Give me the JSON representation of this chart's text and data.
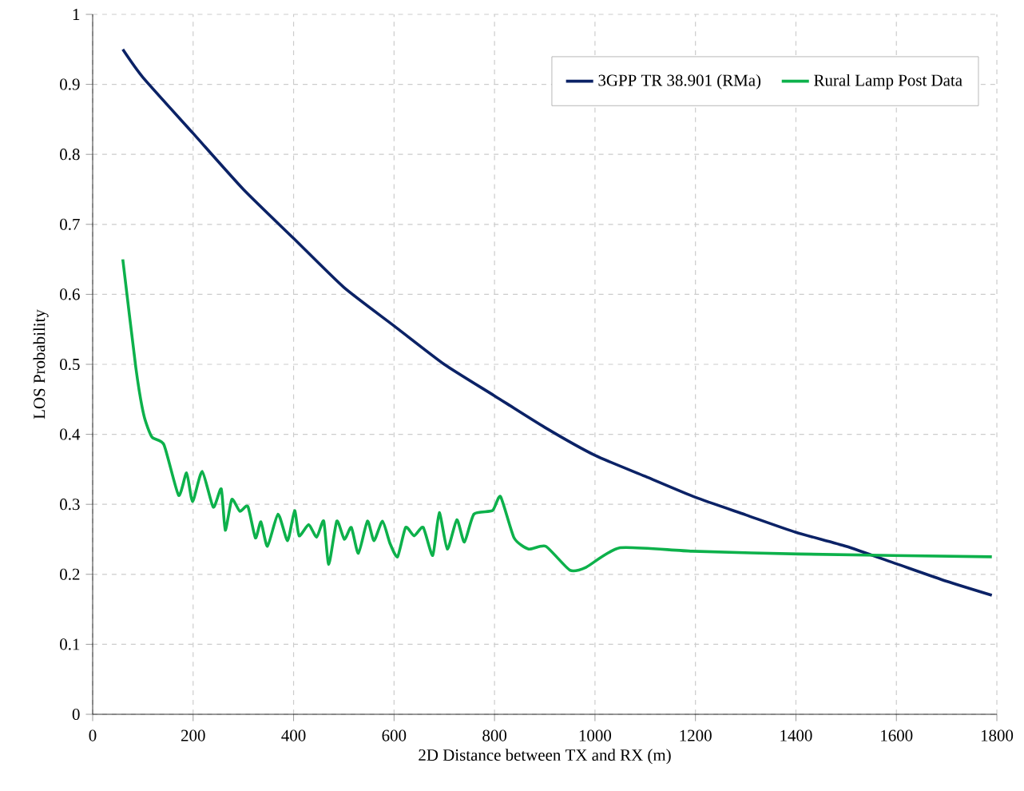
{
  "chart_data": {
    "type": "line",
    "xlabel": "2D Distance between TX and RX (m)",
    "ylabel": "LOS Probability",
    "xlim": [
      0,
      1800
    ],
    "xticks": [
      0,
      200,
      400,
      600,
      800,
      1000,
      1200,
      1400,
      1600,
      1800
    ],
    "ylim": [
      0,
      1
    ],
    "yticks": [
      0,
      0.1,
      0.2,
      0.3,
      0.4,
      0.5,
      0.6,
      0.7,
      0.8,
      0.9,
      1
    ],
    "grid": true,
    "legend": "top right",
    "marker": "none",
    "line_style": "solid",
    "series": [
      {
        "name": "3GPP TR 38.901 (RMa)",
        "color": "#0b2266",
        "x": [
          60,
          100,
          200,
          300,
          400,
          500,
          600,
          700,
          800,
          900,
          1000,
          1100,
          1200,
          1300,
          1400,
          1500,
          1600,
          1700,
          1790
        ],
        "values": [
          0.95,
          0.91,
          0.83,
          0.75,
          0.68,
          0.61,
          0.555,
          0.5,
          0.455,
          0.41,
          0.37,
          0.34,
          0.31,
          0.285,
          0.26,
          0.24,
          0.215,
          0.19,
          0.17
        ]
      },
      {
        "name": "Rural Lamp Post Data",
        "color": "#0db14b",
        "x": [
          60,
          86,
          102,
          118,
          142,
          171,
          187,
          199,
          218,
          240,
          256,
          264,
          277,
          293,
          309,
          324,
          335,
          348,
          369,
          388,
          402,
          411,
          430,
          446,
          460,
          470,
          486,
          501,
          515,
          529,
          547,
          560,
          577,
          592,
          607,
          623,
          640,
          658,
          677,
          690,
          706,
          725,
          740,
          759,
          796,
          812,
          839,
          868,
          902,
          950,
          982,
          1050,
          1194,
          1406,
          1790
        ],
        "values": [
          0.65,
          0.495,
          0.427,
          0.396,
          0.385,
          0.313,
          0.345,
          0.304,
          0.347,
          0.296,
          0.322,
          0.263,
          0.307,
          0.29,
          0.297,
          0.252,
          0.275,
          0.24,
          0.286,
          0.248,
          0.291,
          0.255,
          0.271,
          0.253,
          0.276,
          0.214,
          0.276,
          0.25,
          0.267,
          0.23,
          0.276,
          0.248,
          0.276,
          0.244,
          0.225,
          0.267,
          0.255,
          0.267,
          0.227,
          0.288,
          0.236,
          0.278,
          0.246,
          0.286,
          0.291,
          0.311,
          0.252,
          0.236,
          0.24,
          0.206,
          0.21,
          0.238,
          0.233,
          0.229,
          0.225
        ]
      }
    ]
  }
}
